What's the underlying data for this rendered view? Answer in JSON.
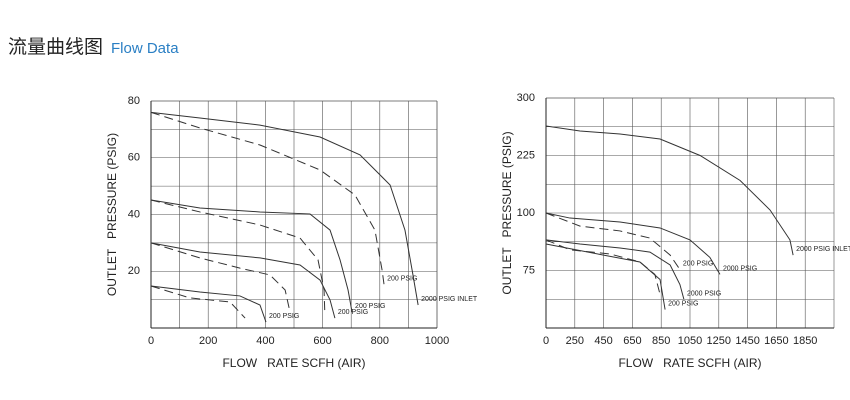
{
  "header": {
    "title_cn": "流量曲线图",
    "title_en": "Flow Data"
  },
  "chart_data": [
    {
      "type": "line",
      "x_label": "FLOW   RATE SCFH (AIR)",
      "y_label": "OUTLET   PRESSURE (PSIG)",
      "xlim": [
        0,
        1000
      ],
      "xticks": [
        0,
        200,
        400,
        600,
        800,
        1000
      ],
      "ylim": [
        0,
        80
      ],
      "yticks": [
        20,
        40,
        60,
        80
      ],
      "grid": true,
      "x_minor_grid": true,
      "series": [
        {
          "label": "2000 PSIG INLET",
          "style": "solid",
          "color": "#333333",
          "x": [
            0,
            171,
            381,
            591,
            731,
            836,
            888,
            913,
            934
          ],
          "values": [
            76,
            74,
            71.5,
            67.3,
            61,
            50.4,
            34.5,
            20.4,
            8.1
          ]
        },
        {
          "label": "200 PSIG",
          "style": "dashed",
          "color": "#333333",
          "x": [
            0,
            171,
            381,
            591,
            713,
            783,
            808,
            815
          ],
          "values": [
            76,
            70.5,
            64.5,
            55.7,
            46.9,
            34.5,
            20.4,
            15.2
          ]
        },
        {
          "label": "200 PSIG",
          "style": "solid",
          "color": "#333333",
          "x": [
            0,
            171,
            381,
            556,
            626,
            661,
            689,
            703
          ],
          "values": [
            45.1,
            42.3,
            40.9,
            40.2,
            34.5,
            24,
            13.4,
            5.6
          ]
        },
        {
          "style": "dashed",
          "color": "#333333",
          "x": [
            0,
            171,
            381,
            521,
            584,
            605,
            608
          ],
          "values": [
            45.1,
            40.9,
            36.3,
            31.7,
            24,
            13.4,
            4.6
          ]
        },
        {
          "label": "200 PSIG",
          "style": "solid",
          "color": "#333333",
          "x": [
            0,
            171,
            381,
            521,
            591,
            626,
            643
          ],
          "values": [
            30,
            26.8,
            24.7,
            22.2,
            16.9,
            9.9,
            3.5
          ]
        },
        {
          "style": "dashed",
          "color": "#333333",
          "x": [
            0,
            171,
            311,
            416,
            469,
            486
          ],
          "values": [
            30,
            24.7,
            21.1,
            18.7,
            13.4,
            5.6
          ]
        },
        {
          "label": "200 PSIG",
          "style": "solid",
          "color": "#333333",
          "x": [
            0,
            171,
            311,
            381,
            402
          ],
          "values": [
            14.8,
            12.7,
            11.3,
            8.1,
            2.1
          ]
        },
        {
          "style": "dashed",
          "color": "#333333",
          "x": [
            0,
            136,
            276,
            329
          ],
          "values": [
            14.8,
            10.6,
            9.2,
            3.5
          ]
        }
      ]
    },
    {
      "type": "line",
      "x_label": "FLOW   RATE SCFH (AIR)",
      "y_label": "OUTLET   PRESSURE (PSIG)",
      "xlim": [
        0,
        2050
      ],
      "xticks": [
        0,
        250,
        450,
        650,
        850,
        1050,
        1250,
        1450,
        1650,
        1850
      ],
      "ylim": [
        50,
        300
      ],
      "yticks": [
        75,
        100,
        225,
        300
      ],
      "grid": true,
      "x_minor_grid": false,
      "series": [
        {
          "label": "2000 PSIG INLET",
          "style": "solid",
          "color": "#333333",
          "x": [
            0,
            286,
            564,
            842,
            1120,
            1398,
            1606,
            1744,
            1766
          ],
          "values": [
            263.5,
            257,
            253,
            246.5,
            225,
            170.7,
            106.5,
            88.3,
            81.7
          ]
        },
        {
          "label": "2000 PSIG",
          "style": "solid",
          "color": "#333333",
          "x": [
            0,
            208,
            564,
            842,
            1050,
            1188,
            1258
          ],
          "values": [
            100,
            97.8,
            96.1,
            93.5,
            88.3,
            80.7,
            73.3
          ]
        },
        {
          "label": "200 PSIG",
          "style": "dashed",
          "color": "#333333",
          "x": [
            0,
            286,
            564,
            772,
            912,
            980
          ],
          "values": [
            100,
            94.3,
            92.2,
            89.1,
            81.7,
            75.4
          ]
        },
        {
          "label": "2000 PSIG",
          "style": "solid",
          "color": "#333333",
          "x": [
            0,
            286,
            564,
            772,
            912,
            980,
            1008
          ],
          "values": [
            88.3,
            86.5,
            84.8,
            83,
            77.4,
            68.9,
            62.4
          ]
        },
        {
          "style": "dashed",
          "color": "#333333",
          "x": [
            0,
            208,
            494,
            702,
            806,
            842
          ],
          "values": [
            88.3,
            84,
            82.2,
            78.7,
            73.3,
            64.6
          ]
        },
        {
          "label": "200 PSIG",
          "style": "solid",
          "color": "#333333",
          "x": [
            0,
            450,
            702,
            842,
            877
          ],
          "values": [
            86.5,
            81.7,
            78.7,
            71.1,
            58
          ]
        }
      ]
    }
  ]
}
